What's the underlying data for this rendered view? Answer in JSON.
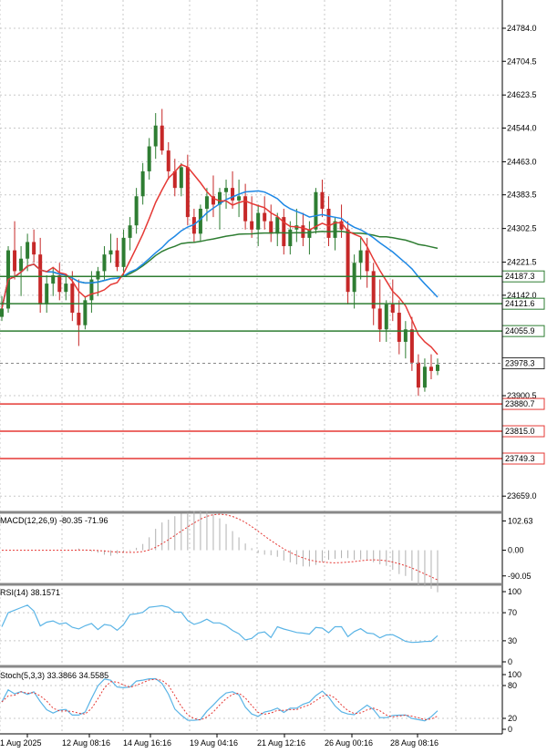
{
  "colors": {
    "up": "#2e7d32",
    "down": "#c62828",
    "ma_fast": "#e53935",
    "ma_mid": "#1e88e5",
    "ma_slow": "#2e7d32",
    "support": "#e53935",
    "resistance": "#2e7d32",
    "grid": "#c8c8c8",
    "indicator": "#5ab4e6"
  },
  "chart_data": [
    {
      "type": "candlestick",
      "yaxis_ticks": [
        "24784.0",
        "24704.5",
        "24623.5",
        "24544.0",
        "24463.0",
        "24383.5",
        "24302.5",
        "24221.5",
        "24142.0",
        "23900.5",
        "23659.0"
      ],
      "ylim": [
        23620,
        24830
      ],
      "last_price": "23978.3",
      "resistance_levels": [
        "24187.3",
        "24121.6",
        "24055.9"
      ],
      "support_levels": [
        "23880.7",
        "23815.0",
        "23749.3"
      ],
      "x_labels": [
        "1 Aug 2025",
        "12 Aug 08:16",
        "14 Aug 16:16",
        "19 Aug 04:16",
        "21 Aug 12:16",
        "26 Aug 00:16",
        "28 Aug 08:16"
      ],
      "candles": [
        [
          24090,
          24140,
          24080,
          24110
        ],
        [
          24110,
          24260,
          24100,
          24250
        ],
        [
          24250,
          24320,
          24180,
          24200
        ],
        [
          24200,
          24260,
          24140,
          24230
        ],
        [
          24230,
          24290,
          24200,
          24270
        ],
        [
          24270,
          24300,
          24220,
          24240
        ],
        [
          24240,
          24280,
          24100,
          24120
        ],
        [
          24120,
          24190,
          24100,
          24170
        ],
        [
          24170,
          24210,
          24140,
          24190
        ],
        [
          24190,
          24220,
          24130,
          24150
        ],
        [
          24150,
          24190,
          24130,
          24170
        ],
        [
          24170,
          24200,
          24080,
          24100
        ],
        [
          24100,
          24180,
          24020,
          24070
        ],
        [
          24070,
          24140,
          24060,
          24130
        ],
        [
          24130,
          24200,
          24100,
          24180
        ],
        [
          24180,
          24210,
          24140,
          24200
        ],
        [
          24200,
          24260,
          24180,
          24240
        ],
        [
          24240,
          24290,
          24220,
          24250
        ],
        [
          24250,
          24280,
          24200,
          24210
        ],
        [
          24210,
          24300,
          24190,
          24280
        ],
        [
          24280,
          24330,
          24250,
          24310
        ],
        [
          24310,
          24400,
          24290,
          24380
        ],
        [
          24380,
          24460,
          24360,
          24440
        ],
        [
          24440,
          24520,
          24420,
          24500
        ],
        [
          24500,
          24580,
          24470,
          24550
        ],
        [
          24550,
          24590,
          24480,
          24490
        ],
        [
          24490,
          24510,
          24420,
          24440
        ],
        [
          24440,
          24470,
          24380,
          24400
        ],
        [
          24400,
          24460,
          24380,
          24450
        ],
        [
          24450,
          24480,
          24310,
          24330
        ],
        [
          24330,
          24350,
          24270,
          24290
        ],
        [
          24290,
          24360,
          24270,
          24350
        ],
        [
          24350,
          24400,
          24320,
          24380
        ],
        [
          24380,
          24430,
          24330,
          24360
        ],
        [
          24360,
          24400,
          24300,
          24390
        ],
        [
          24390,
          24420,
          24350,
          24400
        ],
        [
          24400,
          24440,
          24350,
          24370
        ],
        [
          24370,
          24420,
          24330,
          24380
        ],
        [
          24380,
          24410,
          24300,
          24320
        ],
        [
          24320,
          24380,
          24280,
          24300
        ],
        [
          24300,
          24360,
          24260,
          24340
        ],
        [
          24340,
          24380,
          24300,
          24320
        ],
        [
          24320,
          24360,
          24270,
          24290
        ],
        [
          24290,
          24340,
          24260,
          24330
        ],
        [
          24330,
          24350,
          24240,
          24260
        ],
        [
          24260,
          24320,
          24240,
          24300
        ],
        [
          24300,
          24350,
          24270,
          24310
        ],
        [
          24310,
          24340,
          24260,
          24280
        ],
        [
          24280,
          24320,
          24240,
          24300
        ],
        [
          24300,
          24400,
          24290,
          24390
        ],
        [
          24390,
          24420,
          24330,
          24350
        ],
        [
          24350,
          24380,
          24260,
          24280
        ],
        [
          24280,
          24330,
          24250,
          24320
        ],
        [
          24320,
          24360,
          24280,
          24300
        ],
        [
          24300,
          24320,
          24120,
          24150
        ],
        [
          24150,
          24240,
          24110,
          24220
        ],
        [
          24220,
          24280,
          24180,
          24250
        ],
        [
          24250,
          24280,
          24160,
          24200
        ],
        [
          24200,
          24220,
          24070,
          24110
        ],
        [
          24110,
          24180,
          24030,
          24060
        ],
        [
          24060,
          24130,
          24030,
          24120
        ],
        [
          24120,
          24180,
          24080,
          24100
        ],
        [
          24100,
          24130,
          24000,
          24030
        ],
        [
          24030,
          24080,
          23990,
          24060
        ],
        [
          24060,
          24090,
          23960,
          23980
        ],
        [
          23980,
          24000,
          23900,
          23920
        ],
        [
          23920,
          23990,
          23910,
          23970
        ],
        [
          23970,
          24000,
          23940,
          23960
        ],
        [
          23960,
          23990,
          23950,
          23975
        ]
      ]
    },
    {
      "type": "bar",
      "name": "MACD(12,26,9) -80.35 -71.96",
      "yaxis_ticks": [
        "102.63",
        "0.00",
        "-90.05"
      ],
      "ylim": [
        -110,
        120
      ]
    },
    {
      "type": "line",
      "name": "RSI(14) 38.1571",
      "yaxis_ticks": [
        "100",
        "70",
        "30",
        "0"
      ],
      "ylim": [
        0,
        100
      ]
    },
    {
      "type": "line",
      "name": "Stoch(5,3,3) 33.3866 34.5585",
      "yaxis_ticks": [
        "100",
        "80",
        "20",
        "0"
      ],
      "ylim": [
        0,
        100
      ]
    }
  ]
}
